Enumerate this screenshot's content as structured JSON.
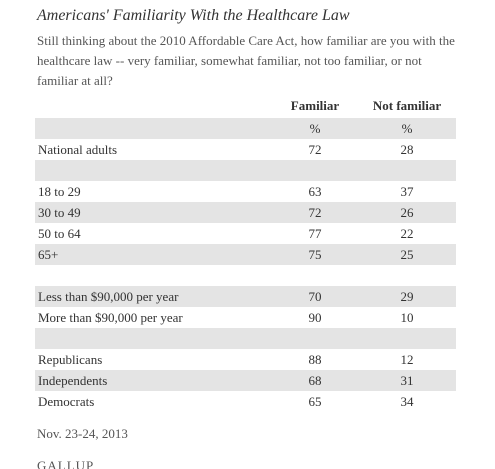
{
  "header": {
    "title": "Americans' Familiarity With the Healthcare Law",
    "question": "Still thinking about the 2010 Affordable Care Act, how familiar are you with the healthcare law -- very familiar, somewhat familiar, not too familiar, or not familiar at all?"
  },
  "table": {
    "columns": [
      "Familiar",
      "Not familiar"
    ],
    "units": [
      "%",
      "%"
    ],
    "groups": [
      [
        [
          "National adults",
          72,
          28
        ]
      ],
      [
        [
          "18 to 29",
          63,
          37
        ],
        [
          "30 to 49",
          72,
          26
        ],
        [
          "50 to 64",
          77,
          22
        ],
        [
          "65+",
          75,
          25
        ]
      ],
      [
        [
          "Less than $90,000 per year",
          70,
          29
        ],
        [
          "More than $90,000 per year",
          90,
          10
        ]
      ],
      [
        [
          "Republicans",
          88,
          12
        ],
        [
          "Independents",
          68,
          31
        ],
        [
          "Democrats",
          65,
          34
        ]
      ]
    ]
  },
  "footer": {
    "date": "Nov. 23-24, 2013",
    "source": "GALLUP"
  }
}
